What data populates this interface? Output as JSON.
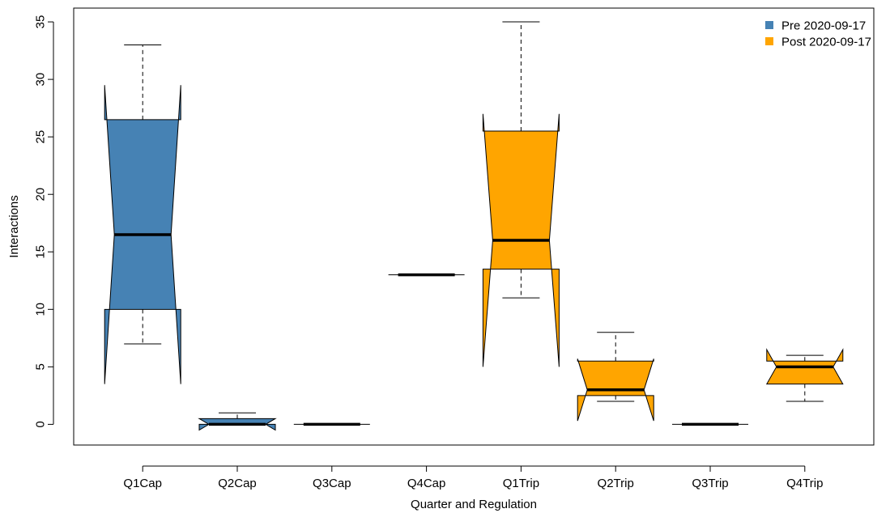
{
  "chart_data": {
    "type": "notched-boxplot",
    "xlabel": "Quarter and Regulation",
    "ylabel": "Interactions",
    "ylim": [
      -1.8,
      36.2
    ],
    "yticks": [
      0,
      5,
      10,
      15,
      20,
      25,
      30,
      35
    ],
    "categories": [
      "Q1Cap",
      "Q2Cap",
      "Q3Cap",
      "Q4Cap",
      "Q1Trip",
      "Q2Trip",
      "Q3Trip",
      "Q4Trip"
    ],
    "colors": {
      "pre": "#4682B4",
      "post": "#FFA500"
    },
    "legend": {
      "position": "top-right",
      "entries": [
        {
          "label": "Pre 2020-09-17",
          "group": "pre"
        },
        {
          "label": "Post 2020-09-17",
          "group": "post"
        }
      ]
    },
    "boxes": [
      {
        "category": "Q1Cap",
        "group": "pre",
        "whisker_low": 7,
        "q1": 10,
        "median": 16.5,
        "q3": 26.5,
        "whisker_high": 33,
        "notch_low": 3.5,
        "notch_high": 29.5
      },
      {
        "category": "Q2Cap",
        "group": "pre",
        "whisker_low": 0,
        "q1": 0,
        "median": 0,
        "q3": 0.5,
        "whisker_high": 1,
        "notch_low": -0.5,
        "notch_high": 0.5
      },
      {
        "category": "Q3Cap",
        "group": "pre",
        "whisker_low": 0,
        "q1": 0,
        "median": 0,
        "q3": 0,
        "whisker_high": 0,
        "notch_low": 0,
        "notch_high": 0
      },
      {
        "category": "Q4Cap",
        "group": "pre",
        "whisker_low": 13,
        "q1": 13,
        "median": 13,
        "q3": 13,
        "whisker_high": 13,
        "notch_low": 13,
        "notch_high": 13
      },
      {
        "category": "Q1Trip",
        "group": "post",
        "whisker_low": 11,
        "q1": 13.5,
        "median": 16,
        "q3": 25.5,
        "whisker_high": 35,
        "notch_low": 5,
        "notch_high": 27
      },
      {
        "category": "Q2Trip",
        "group": "post",
        "whisker_low": 2,
        "q1": 2.5,
        "median": 3,
        "q3": 5.5,
        "whisker_high": 8,
        "notch_low": 0.3,
        "notch_high": 5.7
      },
      {
        "category": "Q3Trip",
        "group": "post",
        "whisker_low": 0,
        "q1": 0,
        "median": 0,
        "q3": 0,
        "whisker_high": 0,
        "notch_low": 0,
        "notch_high": 0
      },
      {
        "category": "Q4Trip",
        "group": "post",
        "whisker_low": 2,
        "q1": 3.5,
        "median": 5,
        "q3": 5.5,
        "whisker_high": 6,
        "notch_low": 3.5,
        "notch_high": 6.5
      }
    ]
  }
}
